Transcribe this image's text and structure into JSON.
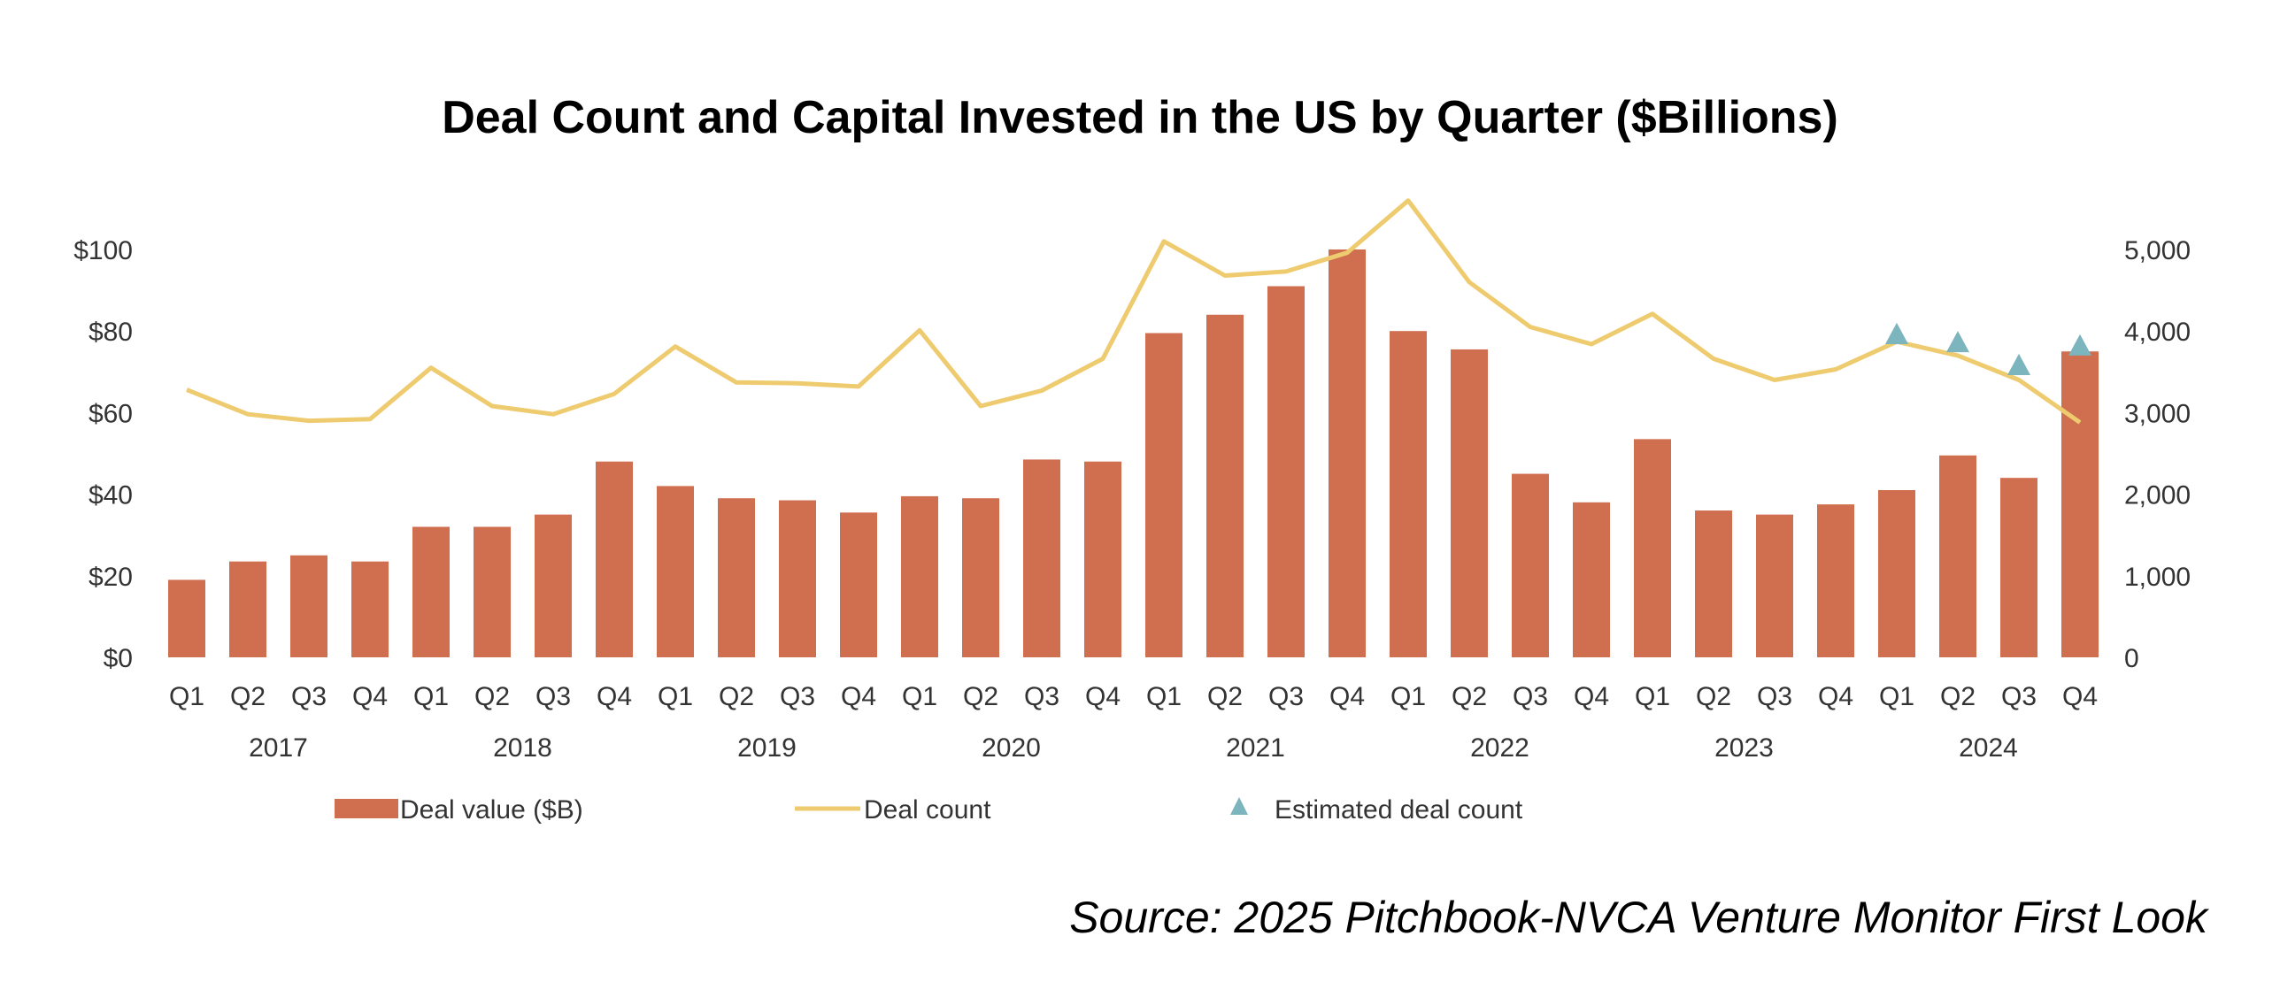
{
  "chart_data": {
    "type": "bar",
    "title": "Deal Count and Capital Invested in the US by Quarter ($Billions)",
    "source": "Source: 2025 Pitchbook-NVCA Venture Monitor First Look",
    "categories": [
      "Q1",
      "Q2",
      "Q3",
      "Q4",
      "Q1",
      "Q2",
      "Q3",
      "Q4",
      "Q1",
      "Q2",
      "Q3",
      "Q4",
      "Q1",
      "Q2",
      "Q3",
      "Q4",
      "Q1",
      "Q2",
      "Q3",
      "Q4",
      "Q1",
      "Q2",
      "Q3",
      "Q4",
      "Q1",
      "Q2",
      "Q3",
      "Q4",
      "Q1",
      "Q2",
      "Q3",
      "Q4"
    ],
    "years": [
      "2017",
      "2018",
      "2019",
      "2020",
      "2021",
      "2022",
      "2023",
      "2024"
    ],
    "series": [
      {
        "name": "Deal value ($B)",
        "type": "bar",
        "axis": "left",
        "values": [
          19,
          23.5,
          25,
          23.5,
          32,
          32,
          35,
          48,
          42,
          39,
          38.5,
          35.5,
          39.5,
          39,
          48.5,
          48,
          79.5,
          84,
          91,
          100,
          80,
          75.5,
          45,
          38,
          53.5,
          36,
          35,
          37.5,
          41,
          49.5,
          44,
          75
        ]
      },
      {
        "name": "Deal count",
        "type": "line",
        "axis": "right",
        "values": [
          3280,
          2980,
          2900,
          2920,
          3550,
          3080,
          2980,
          3230,
          3810,
          3370,
          3360,
          3320,
          4010,
          3080,
          3270,
          3660,
          5100,
          4680,
          4730,
          4960,
          5600,
          4600,
          4050,
          3840,
          4210,
          3660,
          3400,
          3530,
          3870,
          3700,
          3400,
          2880
        ]
      },
      {
        "name": "Estimated deal count",
        "type": "scatter",
        "axis": "right",
        "x_index": [
          28,
          29,
          30,
          31
        ],
        "values": [
          3960,
          3860,
          3580,
          3820
        ]
      }
    ],
    "y_left": {
      "ticks": [
        "$0",
        "$20",
        "$40",
        "$60",
        "$80",
        "$100"
      ],
      "ylim": [
        0,
        100
      ]
    },
    "y_right": {
      "ticks": [
        "0",
        "1,000",
        "2,000",
        "3,000",
        "4,000",
        "5,000"
      ],
      "ylim": [
        0,
        5000
      ]
    },
    "legend": {
      "placement": "bottom"
    },
    "grid": false,
    "colors": {
      "bar": "#D06F4F",
      "line": "#EFCB6F",
      "marker": "#7CB5BE",
      "text": "#333333"
    }
  }
}
